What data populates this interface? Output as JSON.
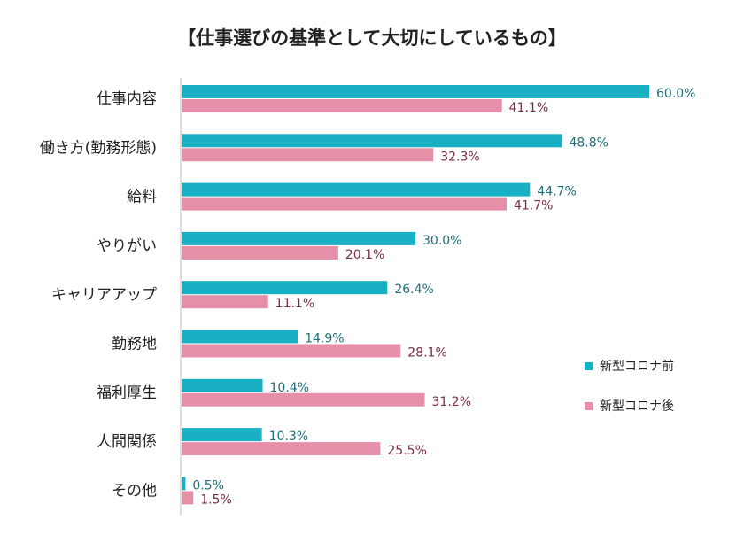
{
  "chart_data": {
    "type": "bar",
    "orientation": "horizontal",
    "title": "【仕事選びの基準として大切にしているもの】",
    "categories": [
      "仕事内容",
      "働き方(勤務形態)",
      "給料",
      "やりがい",
      "キャリアアップ",
      "勤務地",
      "福利厚生",
      "人間関係",
      "その他"
    ],
    "series": [
      {
        "name": "新型コロナ前",
        "color": "#1ab0c4",
        "label_color": "#1f6f78",
        "values": [
          60.0,
          48.8,
          44.7,
          30.0,
          26.4,
          14.9,
          10.4,
          10.3,
          0.5
        ],
        "labels": [
          "60.0%",
          "48.8%",
          "44.7%",
          "30.0%",
          "26.4%",
          "14.9%",
          "10.4%",
          "10.3%",
          "0.5%"
        ]
      },
      {
        "name": "新型コロナ後",
        "color": "#e68fa8",
        "label_color": "#7a2e44",
        "values": [
          41.1,
          32.3,
          41.7,
          20.1,
          11.1,
          28.1,
          31.2,
          25.5,
          1.5
        ],
        "labels": [
          "41.1%",
          "32.3%",
          "41.7%",
          "20.1%",
          "11.1%",
          "28.1%",
          "31.2%",
          "25.5%",
          "1.5%"
        ]
      }
    ],
    "xlim": [
      0,
      60
    ],
    "grid": false,
    "legend_position": "right"
  }
}
